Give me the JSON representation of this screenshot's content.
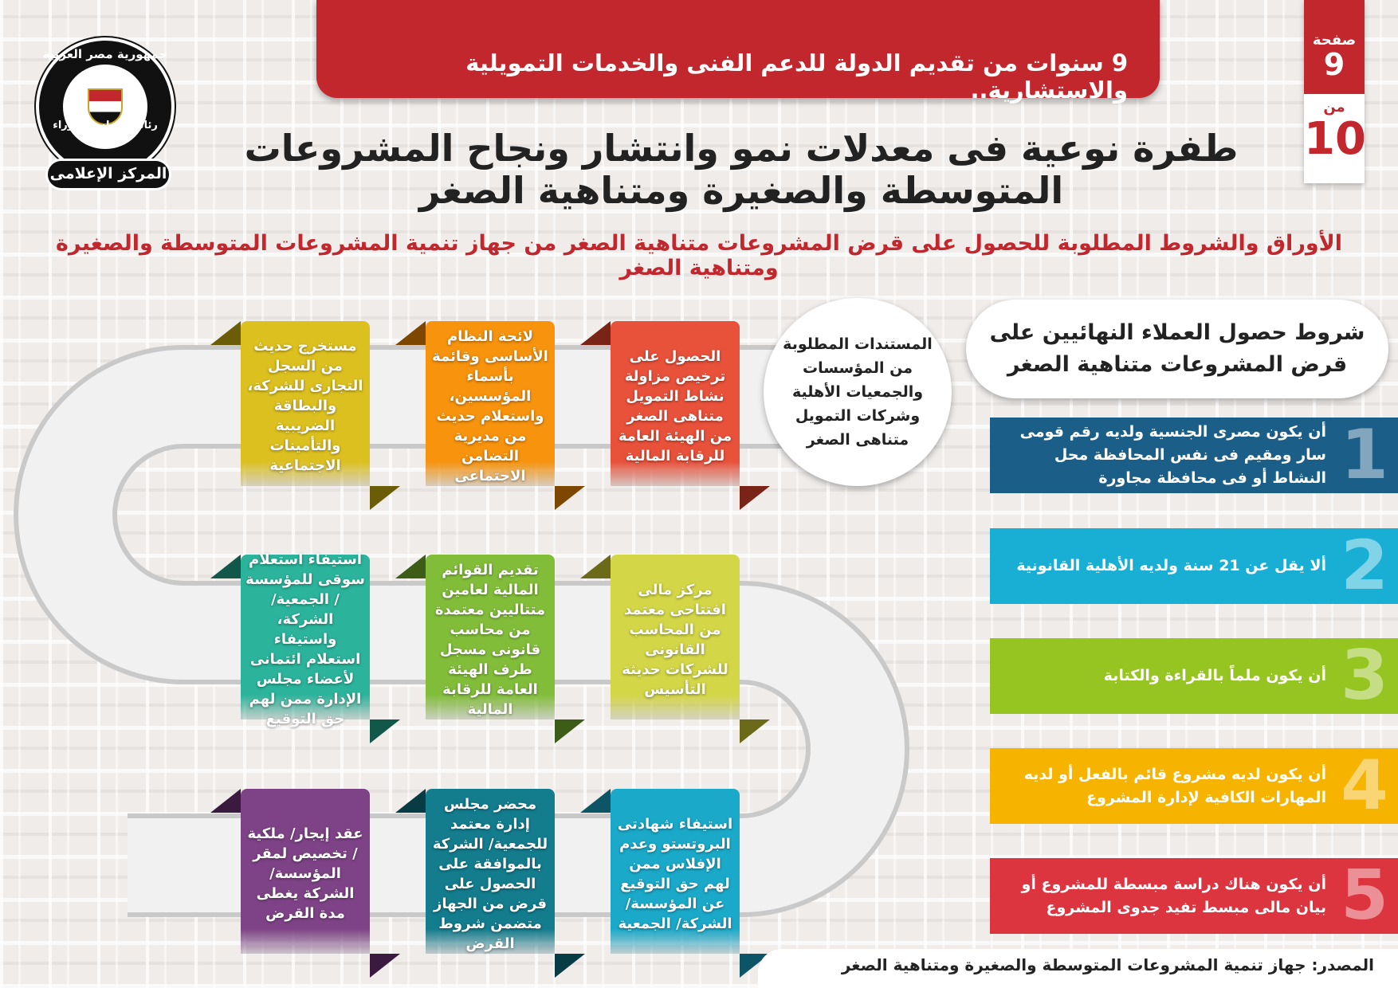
{
  "header": {
    "banner": "9 سنوات من تقديم الدولة للدعم الفنى والخدمات التمويلية والاستشارية..",
    "title": "طفرة نوعية فى معدلات نمو وانتشار ونجاح المشروعات المتوسطة والصغيرة ومتناهية الصغر",
    "subtitle": "الأوراق والشروط المطلوبة للحصول على قرض المشروعات متناهية الصغر من جهاز تنمية المشروعات المتوسطة والصغيرة ومتناهية الصغر"
  },
  "page": {
    "page_label": "صفحة",
    "current": "9",
    "of_label": "من",
    "total": "10"
  },
  "logo": {
    "top_text": "جمهورية مصر العربية",
    "middle_text": "رئاسة مجلس الوزراء",
    "bottom_text": "المركز الإعلامى"
  },
  "conditions": {
    "title": "شروط حصول العملاء النهائيين على قرض المشروعات متناهية الصغر",
    "items": [
      {
        "num": "1",
        "text": "أن يكون مصرى الجنسية ولديه رقم قومى سار ومقيم فى نفس المحافظة محل النشاط أو فى محافظة مجاورة",
        "color": "#1b5e87"
      },
      {
        "num": "2",
        "text": "ألا يقل عن 21 سنة ولديه الأهلية القانونية",
        "color": "#19afd5"
      },
      {
        "num": "3",
        "text": "أن يكون ملماً بالقراءة والكتابة",
        "color": "#96c421"
      },
      {
        "num": "4",
        "text": "أن يكون لديه مشروع قائم بالفعل أو لديه المهارات الكافية لإدارة المشروع",
        "color": "#f6b400"
      },
      {
        "num": "5",
        "text": "أن يكون هناك دراسة مبسطة للمشروع أو بيان مالى مبسط تفيد جدوى المشروع",
        "color": "#dc3540"
      }
    ]
  },
  "documents": {
    "title": "المستندات المطلوبة من المؤسسات والجمعيات الأهلية وشركات التمويل متناهى الصغر",
    "cards": [
      {
        "text": "الحصول على ترخيص مزاولة نشاط التمويل متناهى الصغر من الهيئة العامة للرقابة المالية",
        "color": "#e8513a",
        "dark": "#7a2418"
      },
      {
        "text": "لائحة النظام الأساسى وقائمة بأسماء المؤسسين، واستعلام حديث من مديرية التضامن الاجتماعى",
        "color": "#f7930d",
        "dark": "#7d4700"
      },
      {
        "text": "مستخرج حديث من السجل التجارى للشركة، والبطاقة الضريبية والتأمينات الاجتماعية",
        "color": "#dcc020",
        "dark": "#6b5d08"
      },
      {
        "text": "مركز مالى افتتاحى معتمد من المحاسب القانونى للشركات حديثة التأسيس",
        "color": "#d3d646",
        "dark": "#6a6a18"
      },
      {
        "text": "تقديم القوائم المالية لعامين متتاليين معتمدة من محاسب قانونى مسجل طرف الهيئة العامة للرقابة المالية",
        "color": "#82bd3a",
        "dark": "#3d5c18"
      },
      {
        "text": "استيفاء استعلام سوقى للمؤسسة / الجمعية/ الشركة، واستيفاء استعلام ائتمانى لأعضاء مجلس الإدارة ممن لهم حق التوقيع",
        "color": "#2bb39b",
        "dark": "#11574a"
      },
      {
        "text": "استيفاء شهادتى البروتستو وعدم الإفلاس ممن لهم حق التوقيع عن المؤسسة/ الشركة/ الجمعية",
        "color": "#1ba9c9",
        "dark": "#0c5466"
      },
      {
        "text": "محضر مجلس إدارة معتمد للجمعية/ الشركة بالموافقة على الحصول على قرض من الجهاز متضمن شروط القرض",
        "color": "#137c8d",
        "dark": "#083c45"
      },
      {
        "text": "عقد إيجار/ ملكية / تخصيص لمقر المؤسسة/ الشركة يغطى مدة القرض",
        "color": "#7e4386",
        "dark": "#3b1a40"
      }
    ]
  },
  "source": "المصدر: جهاز تنمية المشروعات المتوسطة والصغيرة ومتناهية الصغر"
}
